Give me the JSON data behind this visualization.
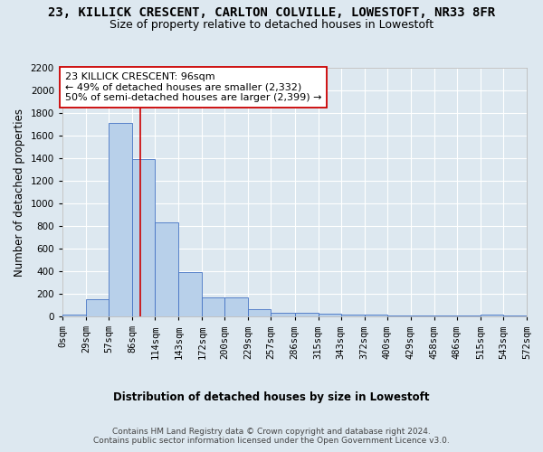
{
  "title": "23, KILLICK CRESCENT, CARLTON COLVILLE, LOWESTOFT, NR33 8FR",
  "subtitle": "Size of property relative to detached houses in Lowestoft",
  "xlabel": "Distribution of detached houses by size in Lowestoft",
  "ylabel": "Number of detached properties",
  "bin_edges": [
    0,
    29,
    57,
    86,
    114,
    143,
    172,
    200,
    229,
    257,
    286,
    315,
    343,
    372,
    400,
    429,
    458,
    486,
    515,
    543,
    572
  ],
  "bin_labels": [
    "0sqm",
    "29sqm",
    "57sqm",
    "86sqm",
    "114sqm",
    "143sqm",
    "172sqm",
    "200sqm",
    "229sqm",
    "257sqm",
    "286sqm",
    "315sqm",
    "343sqm",
    "372sqm",
    "400sqm",
    "429sqm",
    "458sqm",
    "486sqm",
    "515sqm",
    "543sqm",
    "572sqm"
  ],
  "bar_heights": [
    15,
    155,
    1710,
    1390,
    835,
    390,
    170,
    165,
    65,
    30,
    30,
    25,
    20,
    15,
    5,
    5,
    5,
    5,
    20,
    5
  ],
  "bar_color": "#b8d0ea",
  "bar_edge_color": "#4472c4",
  "vline_x": 96,
  "vline_color": "#cc0000",
  "annotation_text": "23 KILLICK CRESCENT: 96sqm\n← 49% of detached houses are smaller (2,332)\n50% of semi-detached houses are larger (2,399) →",
  "annotation_box_color": "#ffffff",
  "annotation_box_edge": "#cc0000",
  "ylim": [
    0,
    2200
  ],
  "yticks": [
    0,
    200,
    400,
    600,
    800,
    1000,
    1200,
    1400,
    1600,
    1800,
    2000,
    2200
  ],
  "background_color": "#dde8f0",
  "plot_background": "#dde8f0",
  "grid_color": "#ffffff",
  "footer_text": "Contains HM Land Registry data © Crown copyright and database right 2024.\nContains public sector information licensed under the Open Government Licence v3.0.",
  "title_fontsize": 10,
  "subtitle_fontsize": 9,
  "axis_label_fontsize": 8.5,
  "tick_fontsize": 7.5,
  "annotation_fontsize": 8,
  "footer_fontsize": 6.5
}
